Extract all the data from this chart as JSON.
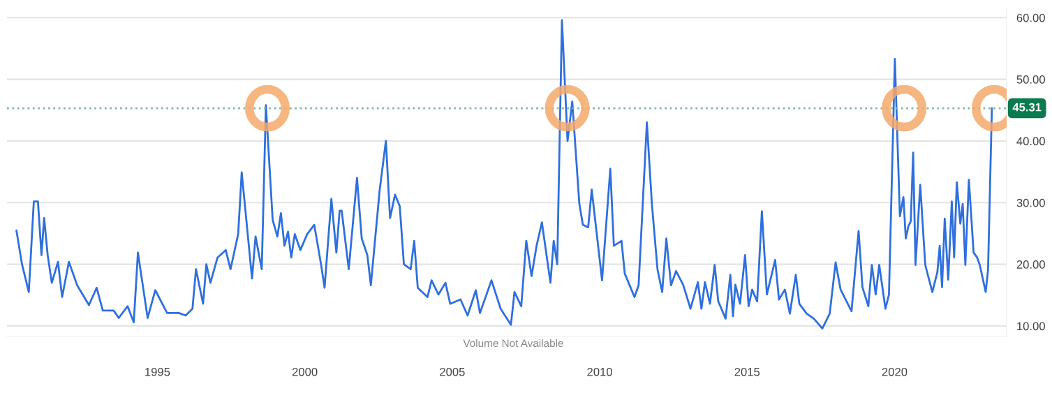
{
  "chart_data": {
    "type": "line",
    "x": [
      1990.22,
      1990.41,
      1990.64,
      1990.81,
      1990.95,
      1991.07,
      1991.16,
      1991.28,
      1991.42,
      1991.63,
      1991.77,
      1992.0,
      1992.28,
      1992.68,
      1992.94,
      1993.15,
      1993.52,
      1993.69,
      1993.99,
      1994.2,
      1994.34,
      1994.67,
      1994.93,
      1995.33,
      1995.73,
      1995.96,
      1996.19,
      1996.31,
      1996.55,
      1996.66,
      1996.8,
      1997.04,
      1997.32,
      1997.48,
      1997.74,
      1997.86,
      1998.21,
      1998.33,
      1998.54,
      1998.68,
      1998.91,
      1999.07,
      1999.19,
      1999.31,
      1999.43,
      1999.54,
      1999.66,
      1999.85,
      2000.08,
      2000.32,
      2000.55,
      2000.67,
      2000.9,
      2001.07,
      2001.18,
      2001.25,
      2001.49,
      2001.77,
      2001.93,
      2002.12,
      2002.24,
      2002.35,
      2002.54,
      2002.75,
      2002.89,
      2003.06,
      2003.22,
      2003.36,
      2003.59,
      2003.71,
      2003.83,
      2004.16,
      2004.3,
      2004.53,
      2004.77,
      2004.93,
      2005.28,
      2005.52,
      2005.8,
      2005.94,
      2006.33,
      2006.64,
      2006.99,
      2007.11,
      2007.34,
      2007.51,
      2007.69,
      2007.86,
      2008.04,
      2008.33,
      2008.44,
      2008.56,
      2008.72,
      2008.91,
      2009.07,
      2009.31,
      2009.43,
      2009.61,
      2009.73,
      2010.08,
      2010.36,
      2010.48,
      2010.74,
      2010.85,
      2011.18,
      2011.32,
      2011.6,
      2011.77,
      2011.96,
      2012.12,
      2012.26,
      2012.42,
      2012.59,
      2012.83,
      2013.08,
      2013.33,
      2013.45,
      2013.57,
      2013.74,
      2013.9,
      2014.02,
      2014.27,
      2014.43,
      2014.52,
      2014.6,
      2014.76,
      2014.93,
      2015.05,
      2015.17,
      2015.34,
      2015.5,
      2015.67,
      2015.95,
      2016.08,
      2016.28,
      2016.45,
      2016.65,
      2016.77,
      2017.02,
      2017.26,
      2017.55,
      2017.8,
      2018.0,
      2018.17,
      2018.54,
      2018.78,
      2018.91,
      2019.11,
      2019.23,
      2019.36,
      2019.48,
      2019.69,
      2019.81,
      2020.01,
      2020.18,
      2020.3,
      2020.38,
      2020.47,
      2020.55,
      2020.63,
      2020.71,
      2020.87,
      2021.04,
      2021.28,
      2021.45,
      2021.53,
      2021.61,
      2021.7,
      2021.82,
      2021.94,
      2022.02,
      2022.11,
      2022.23,
      2022.31,
      2022.4,
      2022.52,
      2022.68,
      2022.8,
      2022.89,
      2023.09,
      2023.17,
      2023.3
    ],
    "series": [
      {
        "color": "#2f6fde",
        "values": [
          25.5,
          20.0,
          15.5,
          30.2,
          30.2,
          21.5,
          27.5,
          21.5,
          17.0,
          20.4,
          14.7,
          20.4,
          16.6,
          13.4,
          16.2,
          12.5,
          12.5,
          11.3,
          13.2,
          10.6,
          21.9,
          11.3,
          15.8,
          12.1,
          12.1,
          11.7,
          12.8,
          19.2,
          13.6,
          20.0,
          17.0,
          21.1,
          22.3,
          19.2,
          24.9,
          34.9,
          17.7,
          24.5,
          19.2,
          45.8,
          27.2,
          24.5,
          28.3,
          23.0,
          25.3,
          21.1,
          24.9,
          22.3,
          24.9,
          26.4,
          20.0,
          16.2,
          30.6,
          21.9,
          28.7,
          28.7,
          19.2,
          34.0,
          24.2,
          21.5,
          16.6,
          22.3,
          32.1,
          40.0,
          27.5,
          31.3,
          29.4,
          20.0,
          19.2,
          23.8,
          16.2,
          14.7,
          17.4,
          15.1,
          17.0,
          13.6,
          14.3,
          11.7,
          15.8,
          12.1,
          17.4,
          12.8,
          10.2,
          15.5,
          13.2,
          23.8,
          18.1,
          23.0,
          26.8,
          17.0,
          23.8,
          20.0,
          59.6,
          40.0,
          46.4,
          29.8,
          26.4,
          26.0,
          32.1,
          17.4,
          35.5,
          23.0,
          23.8,
          18.5,
          14.7,
          16.6,
          43.0,
          29.8,
          19.2,
          15.5,
          24.2,
          16.6,
          18.9,
          16.7,
          12.8,
          17.1,
          12.8,
          17.1,
          13.6,
          19.9,
          14.0,
          11.2,
          18.3,
          11.6,
          16.7,
          13.6,
          21.5,
          13.2,
          15.9,
          14.0,
          28.6,
          15.1,
          20.7,
          14.3,
          15.9,
          12.0,
          18.3,
          13.6,
          12.0,
          11.2,
          9.6,
          12.0,
          20.3,
          15.9,
          12.4,
          25.4,
          16.3,
          13.2,
          19.9,
          15.1,
          19.9,
          12.8,
          15.1,
          53.3,
          27.8,
          30.9,
          24.2,
          26.2,
          27.0,
          38.1,
          19.9,
          32.9,
          19.9,
          15.5,
          18.7,
          23.0,
          16.3,
          27.4,
          17.5,
          30.2,
          21.1,
          33.3,
          26.6,
          29.8,
          19.9,
          33.7,
          21.9,
          21.1,
          19.9,
          15.5,
          19.1,
          45.3
        ]
      }
    ],
    "xlim": [
      1989.9,
      2023.8
    ],
    "xticks": [
      1995,
      2000,
      2005,
      2010,
      2015,
      2020
    ],
    "ylim": [
      8.3,
      61.5
    ],
    "yticks": [
      {
        "value": 10,
        "label": "10.00"
      },
      {
        "value": 20,
        "label": "20.00"
      },
      {
        "value": 30,
        "label": "30.00"
      },
      {
        "value": 40,
        "label": "40.00"
      },
      {
        "value": 50,
        "label": "50.00"
      },
      {
        "value": 60,
        "label": "60.00"
      }
    ],
    "ref_lines": [
      {
        "axis": "y",
        "value": 45.31,
        "label": "45.31",
        "color": "#7fb8a3",
        "line_style": "dotted"
      }
    ],
    "annotations": [
      "Volume Not Available"
    ],
    "grid": "y",
    "legend": false,
    "marker": "none",
    "line_style": "solid"
  }
}
